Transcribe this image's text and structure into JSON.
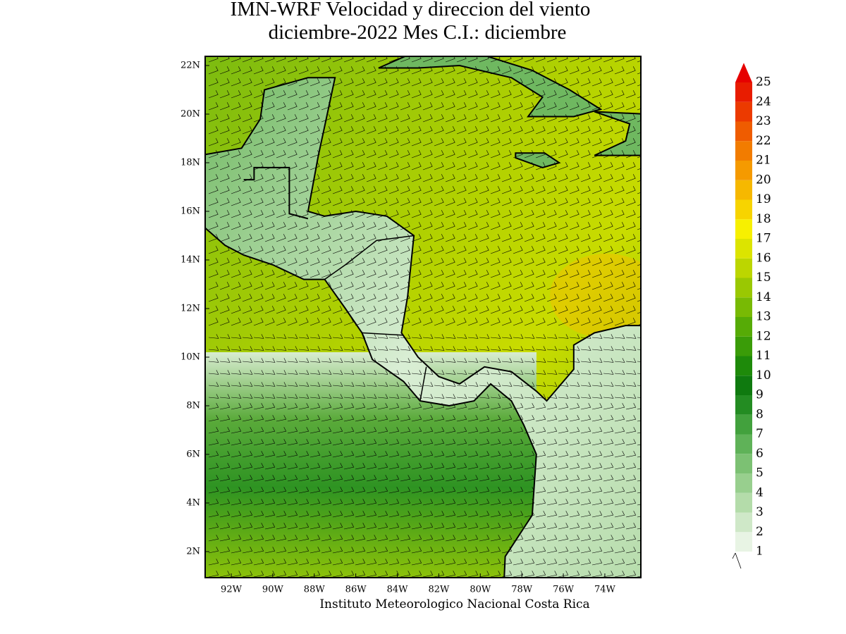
{
  "map": {
    "title": [
      "IMN-WRF Velocidad y direccion del viento",
      "diciembre-2022 Mes C.I.: diciembre"
    ],
    "credit": "Instituto Meteorologico Nacional Costa Rica",
    "lon_ticks": [
      {
        "value": -92,
        "label": "92W"
      },
      {
        "value": -90,
        "label": "90W"
      },
      {
        "value": -88,
        "label": "88W"
      },
      {
        "value": -86,
        "label": "86W"
      },
      {
        "value": -84,
        "label": "84W"
      },
      {
        "value": -82,
        "label": "82W"
      },
      {
        "value": -80,
        "label": "80W"
      },
      {
        "value": -78,
        "label": "78W"
      },
      {
        "value": -76,
        "label": "76W"
      },
      {
        "value": -74,
        "label": "74W"
      }
    ],
    "lat_ticks": [
      {
        "value": 22,
        "label": "22N"
      },
      {
        "value": 20,
        "label": "20N"
      },
      {
        "value": 18,
        "label": "18N"
      },
      {
        "value": 16,
        "label": "16N"
      },
      {
        "value": 14,
        "label": "14N"
      },
      {
        "value": 12,
        "label": "12N"
      },
      {
        "value": 10,
        "label": "10N"
      },
      {
        "value": 8,
        "label": "8N"
      },
      {
        "value": 6,
        "label": "6N"
      },
      {
        "value": 4,
        "label": "4N"
      },
      {
        "value": 2,
        "label": "2N"
      }
    ],
    "colorbar": {
      "levels": [
        1,
        2,
        3,
        4,
        5,
        6,
        7,
        8,
        9,
        10,
        11,
        12,
        13,
        14,
        15,
        16,
        17,
        18,
        19,
        20,
        21,
        22,
        23,
        24,
        25
      ],
      "colors": [
        "#e8f4e4",
        "#cfe8c8",
        "#b4dcaa",
        "#98cf8e",
        "#7cc173",
        "#5fb258",
        "#42a13d",
        "#238c22",
        "#0f7a0f",
        "#1e8a0a",
        "#3a9c08",
        "#56ab06",
        "#78ba04",
        "#9ac802",
        "#bcd600",
        "#dce400",
        "#f7f000",
        "#f7d400",
        "#f6b800",
        "#f59a00",
        "#f27c00",
        "#ef5c00",
        "#ec3a00",
        "#e81c00",
        "#e60000"
      ]
    }
  }
}
